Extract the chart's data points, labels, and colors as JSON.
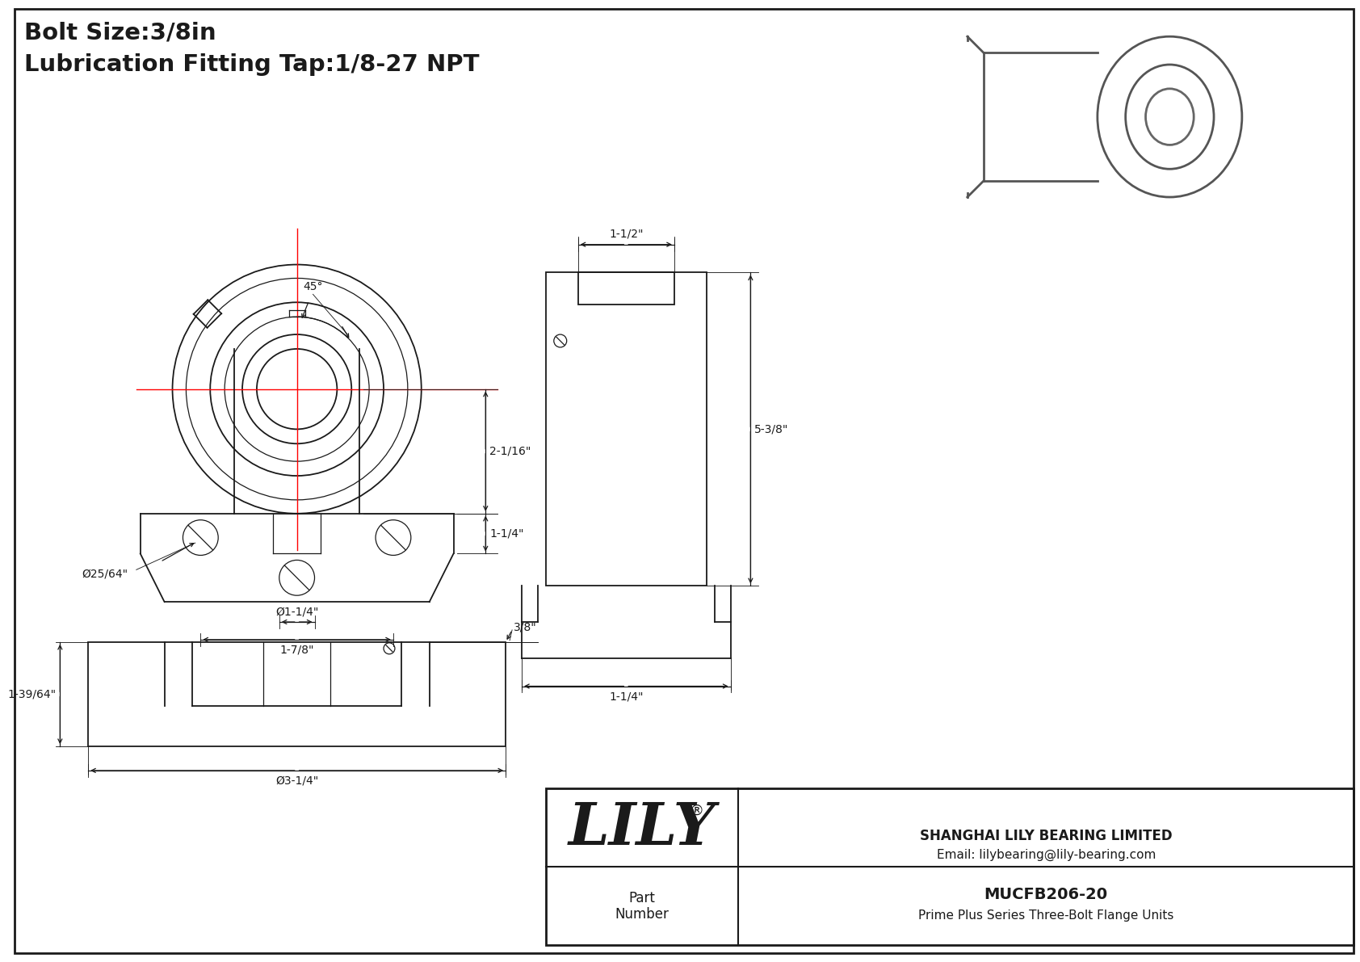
{
  "title_line1": "Bolt Size:3/8in",
  "title_line2": "Lubrication Fitting Tap:1/8-27 NPT",
  "bg_color": "#ffffff",
  "line_color": "#1a1a1a",
  "red_color": "#ff0000",
  "company": "SHANGHAI LILY BEARING LIMITED",
  "email": "Email: lilybearing@lily-bearing.com",
  "part_label": "Part\nNumber",
  "part_number": "MUCFB206-20",
  "part_desc": "Prime Plus Series Three-Bolt Flange Units",
  "lily_text": "LILY",
  "dims": {
    "bolt_dia": "Ø25/64\"",
    "bolt_hole_dia": "Ø1-1/4\"",
    "bolt_hole_bc": "1-7/8\"",
    "dim_2_1_16": "2-1/16\"",
    "dim_1_1_4": "1-1/4\"",
    "angle": "45°",
    "side_width": "1-1/2\"",
    "side_height": "5-3/8\"",
    "side_bot": "1-1/4\"",
    "bot_depth": "3/8\"",
    "bot_width": "Ø3-1/4\"",
    "bot_height": "1-39/64\""
  }
}
